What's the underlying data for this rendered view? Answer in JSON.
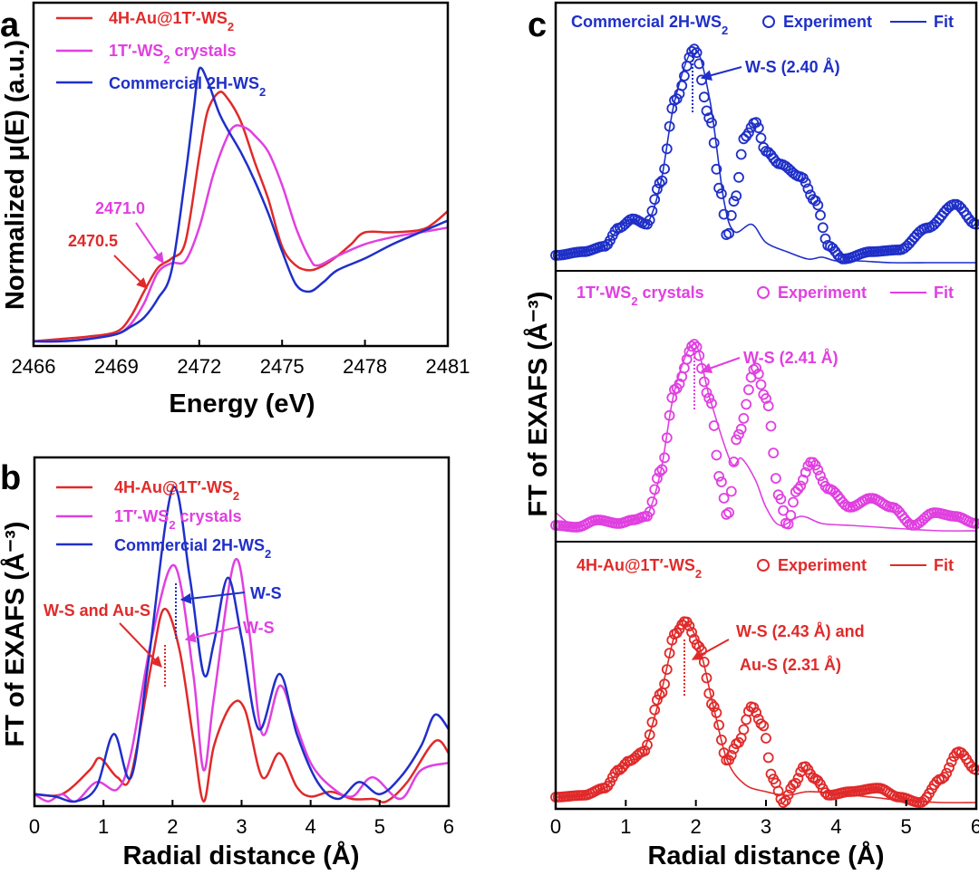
{
  "colors": {
    "red": "#e02a2a",
    "magenta": "#e040e0",
    "blue": "#1f2fc8",
    "black": "#000000"
  },
  "series_names": {
    "red": "4H-Au@1T′-WS",
    "magenta": "1T′-WS",
    "magenta_suffix": " crystals",
    "blue": "Commercial 2H-WS",
    "subscript": "2"
  },
  "panels": {
    "a": {
      "label": "a",
      "xlabel": "Energy (eV)",
      "ylabel": "Normalized μ(E) (a.u.)",
      "ann_red": "2470.5",
      "ann_magenta": "2471.0"
    },
    "b": {
      "label": "b",
      "xlabel": "Radial distance (Å)",
      "ylabel": "FT of EXAFS (Å⁻³)",
      "ann_red": "W-S and Au-S",
      "ann_magenta": "W-S",
      "ann_blue": "W-S"
    },
    "c": {
      "label": "c",
      "xlabel": "Radial distance (Å)",
      "ylabel": "FT of EXAFS (Å⁻³)",
      "legend_experiment": "Experiment",
      "legend_fit": "Fit",
      "ann_top": "W-S (2.40 Å)",
      "ann_mid": "W-S (2.41 Å)",
      "ann_bot_1": "W-S (2.43 Å) and",
      "ann_bot_2": "Au-S (2.31 Å)"
    }
  },
  "chart_data": [
    {
      "panel": "a",
      "type": "line",
      "xlabel": "Energy (eV)",
      "ylabel": "Normalized μ(E) (a.u.)",
      "xlim": [
        2466,
        2481
      ],
      "ylim": [
        0,
        1.45
      ],
      "xticks": [
        2466,
        2469,
        2472,
        2475,
        2478,
        2481
      ],
      "legend": [
        "4H-Au@1T′-WS2",
        "1T′-WS2 crystals",
        "Commercial 2H-WS2"
      ],
      "series": [
        {
          "name": "4H-Au@1T′-WS2",
          "color": "red",
          "x": [
            2466,
            2467,
            2468,
            2469,
            2469.5,
            2470,
            2470.5,
            2471,
            2471.5,
            2472,
            2472.3,
            2472.7,
            2473,
            2473.5,
            2474,
            2474.5,
            2475,
            2475.5,
            2476,
            2476.5,
            2477,
            2477.5,
            2478,
            2479,
            2480,
            2480.5,
            2481
          ],
          "y": [
            0.02,
            0.03,
            0.04,
            0.06,
            0.12,
            0.23,
            0.33,
            0.37,
            0.44,
            0.8,
            0.99,
            1.07,
            1.05,
            0.95,
            0.78,
            0.62,
            0.42,
            0.34,
            0.32,
            0.34,
            0.38,
            0.43,
            0.48,
            0.48,
            0.49,
            0.52,
            0.57
          ]
        },
        {
          "name": "1T′-WS2 crystals",
          "color": "magenta",
          "x": [
            2466,
            2467,
            2468,
            2469,
            2469.5,
            2470,
            2470.5,
            2471,
            2471.5,
            2472,
            2472.5,
            2473,
            2473.3,
            2473.7,
            2474,
            2474.5,
            2475,
            2475.5,
            2476,
            2476.3,
            2477,
            2478,
            2479,
            2480,
            2481
          ],
          "y": [
            0.02,
            0.02,
            0.03,
            0.05,
            0.09,
            0.18,
            0.31,
            0.35,
            0.36,
            0.5,
            0.72,
            0.88,
            0.93,
            0.92,
            0.89,
            0.82,
            0.68,
            0.5,
            0.37,
            0.34,
            0.38,
            0.43,
            0.46,
            0.48,
            0.5
          ]
        },
        {
          "name": "Commercial 2H-WS2",
          "color": "blue",
          "x": [
            2466,
            2467,
            2468,
            2469,
            2469.5,
            2470,
            2470.5,
            2471,
            2471.5,
            2471.8,
            2472,
            2472.3,
            2472.7,
            2473,
            2473.5,
            2474,
            2474.5,
            2475,
            2475.5,
            2476,
            2476.5,
            2477,
            2478,
            2479,
            2480,
            2481
          ],
          "y": [
            0.02,
            0.02,
            0.03,
            0.05,
            0.08,
            0.12,
            0.2,
            0.32,
            0.72,
            1.0,
            1.17,
            1.12,
            0.99,
            0.92,
            0.82,
            0.7,
            0.56,
            0.4,
            0.26,
            0.23,
            0.27,
            0.32,
            0.37,
            0.43,
            0.48,
            0.53
          ]
        }
      ]
    },
    {
      "panel": "b",
      "type": "line",
      "xlabel": "Radial distance (Å)",
      "ylabel": "FT of EXAFS (Å⁻³)",
      "xlim": [
        0,
        6
      ],
      "ylim": [
        0,
        1.45
      ],
      "xticks": [
        0,
        1,
        2,
        3,
        4,
        5,
        6
      ],
      "legend": [
        "4H-Au@1T′-WS2",
        "1T′-WS2 crystals",
        "Commercial 2H-WS2"
      ],
      "series": [
        {
          "name": "4H-Au@1T′-WS2",
          "color": "red",
          "x": [
            0,
            0.4,
            0.8,
            0.95,
            1.2,
            1.4,
            1.7,
            1.88,
            2.1,
            2.3,
            2.45,
            2.6,
            2.85,
            3.05,
            3.3,
            3.55,
            3.8,
            4.0,
            4.3,
            4.6,
            4.9,
            5.1,
            5.4,
            5.8,
            6.0
          ],
          "y": [
            0.05,
            0.05,
            0.15,
            0.2,
            0.12,
            0.13,
            0.6,
            0.82,
            0.65,
            0.28,
            0.02,
            0.25,
            0.42,
            0.4,
            0.12,
            0.22,
            0.08,
            0.04,
            0.06,
            0.03,
            0.03,
            0.02,
            0.1,
            0.27,
            0.22
          ]
        },
        {
          "name": "1T′-WS2 crystals",
          "color": "magenta",
          "x": [
            0,
            0.2,
            0.4,
            0.6,
            0.9,
            1.2,
            1.4,
            1.7,
            2.03,
            2.3,
            2.45,
            2.6,
            2.9,
            3.1,
            3.3,
            3.55,
            3.75,
            4.0,
            4.3,
            4.6,
            4.9,
            5.3,
            5.6,
            6.0
          ],
          "y": [
            0.05,
            0.02,
            0.05,
            0.02,
            0.1,
            0.07,
            0.22,
            0.7,
            1.0,
            0.55,
            0.15,
            0.45,
            1.02,
            0.75,
            0.3,
            0.5,
            0.37,
            0.18,
            0.08,
            0.04,
            0.12,
            0.03,
            0.15,
            0.18
          ]
        },
        {
          "name": "Commercial 2H-WS2",
          "color": "blue",
          "x": [
            0,
            0.3,
            0.6,
            0.9,
            1.15,
            1.4,
            1.65,
            2.0,
            2.25,
            2.45,
            2.6,
            2.8,
            3.0,
            3.25,
            3.55,
            3.8,
            4.1,
            4.4,
            4.7,
            5.0,
            5.3,
            5.6,
            5.8,
            6.0
          ],
          "y": [
            0.05,
            0.04,
            0.02,
            0.08,
            0.3,
            0.12,
            0.6,
            1.32,
            0.95,
            0.55,
            0.68,
            0.95,
            0.7,
            0.32,
            0.55,
            0.3,
            0.1,
            0.03,
            0.1,
            0.05,
            0.12,
            0.25,
            0.38,
            0.32
          ]
        }
      ]
    },
    {
      "panel": "c-top",
      "type": "scatter+line",
      "title": "Commercial 2H-WS2",
      "xlabel": "Radial distance (Å)",
      "xlim": [
        0,
        6
      ],
      "ylim": [
        0,
        1.3
      ],
      "xticks": [
        0,
        1,
        2,
        3,
        4,
        5,
        6
      ],
      "color": "blue",
      "annotation": "W-S (2.40 Å)",
      "marker_x": 1.98,
      "experiment": {
        "x": [
          0,
          0.4,
          0.7,
          0.9,
          1.1,
          1.3,
          1.5,
          1.7,
          1.98,
          2.2,
          2.35,
          2.45,
          2.55,
          2.7,
          2.85,
          3.0,
          3.2,
          3.5,
          3.7,
          3.9,
          4.1,
          4.5,
          4.9,
          5.3,
          5.7,
          6.0
        ],
        "y": [
          0.05,
          0.07,
          0.1,
          0.2,
          0.25,
          0.22,
          0.45,
          0.9,
          1.18,
          0.8,
          0.4,
          0.15,
          0.35,
          0.7,
          0.78,
          0.62,
          0.55,
          0.48,
          0.35,
          0.1,
          0.03,
          0.07,
          0.08,
          0.2,
          0.33,
          0.22
        ]
      },
      "fit": {
        "x": [
          0,
          0.4,
          0.7,
          0.9,
          1.1,
          1.3,
          1.5,
          1.7,
          1.98,
          2.2,
          2.4,
          2.55,
          2.8,
          3.0,
          3.3,
          3.6,
          3.8,
          4.0,
          4.3,
          4.8,
          5.3,
          5.8,
          6.0
        ],
        "y": [
          0.05,
          0.07,
          0.1,
          0.2,
          0.25,
          0.22,
          0.45,
          0.9,
          1.18,
          0.9,
          0.35,
          0.18,
          0.22,
          0.12,
          0.07,
          0.03,
          0.04,
          0.02,
          0.02,
          0.01,
          0.01,
          0.01,
          0.01
        ]
      }
    },
    {
      "panel": "c-middle",
      "type": "scatter+line",
      "title": "1T′-WS2 crystals",
      "xlabel": "Radial distance (Å)",
      "xlim": [
        0,
        6
      ],
      "ylim": [
        0,
        1.3
      ],
      "xticks": [
        0,
        1,
        2,
        3,
        4,
        5,
        6
      ],
      "color": "magenta",
      "annotation": "W-S (2.41 Å)",
      "marker_x": 2.0,
      "experiment": {
        "x": [
          0,
          0.3,
          0.6,
          0.9,
          1.1,
          1.3,
          1.5,
          1.7,
          1.98,
          2.2,
          2.35,
          2.45,
          2.6,
          2.85,
          3.0,
          3.2,
          3.3,
          3.45,
          3.65,
          3.9,
          4.2,
          4.5,
          4.8,
          5.1,
          5.4,
          5.7,
          6.0
        ],
        "y": [
          0.05,
          0.04,
          0.08,
          0.06,
          0.08,
          0.1,
          0.35,
          0.8,
          1.05,
          0.75,
          0.3,
          0.1,
          0.55,
          0.92,
          0.75,
          0.2,
          0.05,
          0.25,
          0.4,
          0.25,
          0.15,
          0.2,
          0.15,
          0.05,
          0.12,
          0.1,
          0.06
        ]
      },
      "fit": {
        "x": [
          0,
          0.3,
          0.6,
          0.9,
          1.1,
          1.3,
          1.5,
          1.7,
          1.98,
          2.2,
          2.5,
          2.65,
          2.85,
          3.0,
          3.2,
          3.5,
          3.8,
          4.2,
          4.6,
          5.0,
          5.5,
          6.0
        ],
        "y": [
          0.12,
          0.04,
          0.08,
          0.06,
          0.08,
          0.1,
          0.35,
          0.8,
          1.05,
          0.75,
          0.4,
          0.42,
          0.3,
          0.15,
          0.05,
          0.1,
          0.06,
          0.05,
          0.04,
          0.03,
          0.02,
          0.02
        ]
      }
    },
    {
      "panel": "c-bottom",
      "type": "scatter+line",
      "title": "4H-Au@1T′-WS2",
      "xlabel": "Radial distance (Å)",
      "xlim": [
        0,
        6
      ],
      "ylim": [
        0,
        1.3
      ],
      "xticks": [
        0,
        1,
        2,
        3,
        4,
        5,
        6
      ],
      "color": "red",
      "annotation": "W-S (2.43 Å) and Au-S (2.31 Å)",
      "marker_x": 1.85,
      "experiment": {
        "x": [
          0,
          0.4,
          0.7,
          0.9,
          1.05,
          1.25,
          1.5,
          1.7,
          1.85,
          2.05,
          2.25,
          2.45,
          2.6,
          2.8,
          2.95,
          3.1,
          3.25,
          3.4,
          3.55,
          3.7,
          3.9,
          4.2,
          4.6,
          4.9,
          5.2,
          5.5,
          5.75,
          6.0
        ],
        "y": [
          0.05,
          0.06,
          0.1,
          0.2,
          0.25,
          0.3,
          0.62,
          0.95,
          1.02,
          0.88,
          0.55,
          0.25,
          0.35,
          0.55,
          0.45,
          0.15,
          0.02,
          0.12,
          0.22,
          0.15,
          0.06,
          0.08,
          0.1,
          0.05,
          0.02,
          0.15,
          0.3,
          0.2
        ]
      },
      "fit": {
        "x": [
          0,
          0.4,
          0.7,
          0.9,
          1.05,
          1.25,
          1.5,
          1.7,
          1.85,
          2.05,
          2.25,
          2.45,
          2.7,
          3.0,
          3.3,
          3.6,
          4.0,
          4.5,
          5.0,
          5.5,
          6.0
        ],
        "y": [
          0.05,
          0.06,
          0.1,
          0.2,
          0.25,
          0.3,
          0.62,
          0.95,
          1.02,
          0.88,
          0.55,
          0.25,
          0.12,
          0.08,
          0.06,
          0.08,
          0.07,
          0.05,
          0.03,
          0.02,
          0.02
        ]
      }
    }
  ]
}
